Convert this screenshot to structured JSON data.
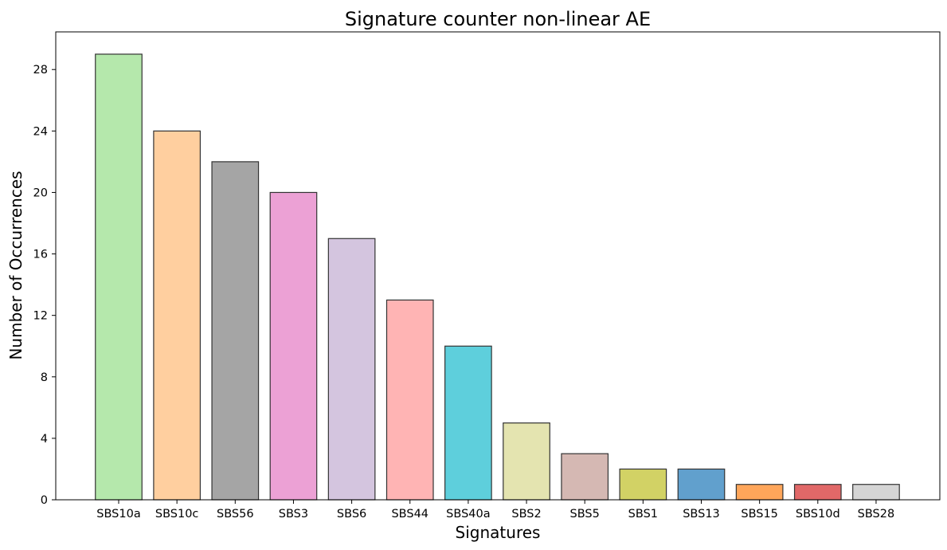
{
  "chart_data": {
    "type": "bar",
    "title": "Signature counter non-linear AE",
    "xlabel": "Signatures",
    "ylabel": "Number of Occurrences",
    "categories": [
      "SBS10a",
      "SBS10c",
      "SBS56",
      "SBS3",
      "SBS6",
      "SBS44",
      "SBS40a",
      "SBS2",
      "SBS5",
      "SBS1",
      "SBS13",
      "SBS15",
      "SBS10d",
      "SBS28"
    ],
    "values": [
      29,
      24,
      22,
      20,
      17,
      13,
      10,
      5,
      3,
      2,
      2,
      1,
      1,
      1
    ],
    "colors": [
      "#b5e8ac",
      "#ffcf9f",
      "#a5a5a5",
      "#eca1d5",
      "#d4c5df",
      "#ffb4b4",
      "#5ecfdc",
      "#e4e4b0",
      "#d5b8b3",
      "#d2d265",
      "#61a0cd",
      "#ffa65a",
      "#e16868",
      "#d5d5d5"
    ],
    "yticks": [
      0,
      4,
      8,
      12,
      16,
      20,
      24,
      28
    ],
    "ylim": [
      0,
      30.45
    ],
    "grid": false,
    "legend": "none"
  }
}
